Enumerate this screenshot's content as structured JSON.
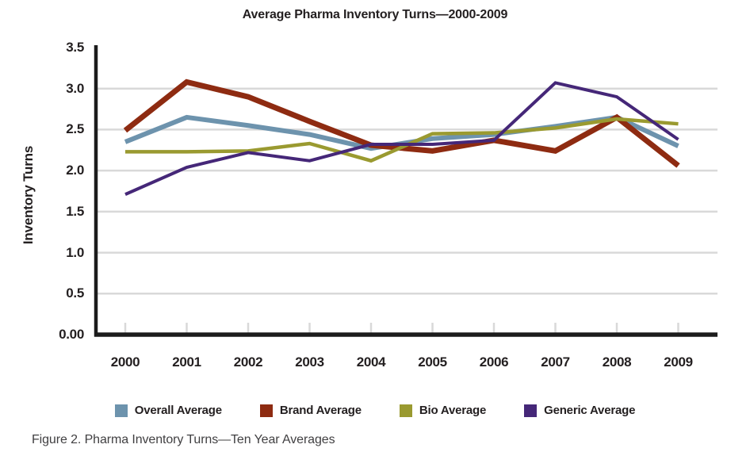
{
  "figure_caption": "Figure 2. Pharma Inventory Turns—Ten Year Averages",
  "chart_data": {
    "type": "line",
    "title": "Average Pharma Inventory Turns—2000-2009",
    "xlabel": "",
    "ylabel": "Inventory Turns",
    "categories": [
      "2000",
      "2001",
      "2002",
      "2003",
      "2004",
      "2005",
      "2006",
      "2007",
      "2008",
      "2009"
    ],
    "ylim": [
      0,
      3.5
    ],
    "y_ticks": {
      "values": [
        0,
        0.5,
        1.0,
        1.5,
        2.0,
        2.5,
        3.0,
        3.5
      ],
      "labels": [
        "0.00",
        "0.5",
        "1.0",
        "1.5",
        "2.0",
        "2.5",
        "3.0",
        "3.5"
      ]
    },
    "grid": "horizontal",
    "gridline_color": "#d9d9d9",
    "axis_color": "#1c1c1c",
    "legend_position": "bottom",
    "series": [
      {
        "name": "Overall Average",
        "color": "#6d93ad",
        "values": [
          2.35,
          2.65,
          2.55,
          2.44,
          2.27,
          2.39,
          2.44,
          2.54,
          2.65,
          2.3
        ]
      },
      {
        "name": "Brand Average",
        "color": "#8e2b11",
        "values": [
          2.49,
          3.08,
          2.9,
          2.6,
          2.31,
          2.24,
          2.37,
          2.24,
          2.65,
          2.06
        ]
      },
      {
        "name": "Bio Average",
        "color": "#9a9a30",
        "values": [
          2.23,
          2.23,
          2.24,
          2.33,
          2.12,
          2.45,
          2.46,
          2.52,
          2.63,
          2.57
        ]
      },
      {
        "name": "Generic Average",
        "color": "#452778",
        "values": [
          1.71,
          2.04,
          2.22,
          2.12,
          2.32,
          2.32,
          2.37,
          3.07,
          2.9,
          2.38
        ]
      }
    ]
  }
}
